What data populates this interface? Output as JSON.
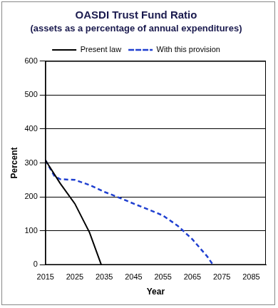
{
  "chart_data": {
    "type": "line",
    "title": "OASDI Trust Fund Ratio",
    "subtitle": "(assets as a percentage of annual expenditures)",
    "x_label": "Year",
    "y_label": "Percent",
    "series": [
      {
        "name": "Present law",
        "color": "#000000",
        "line_style": "solid",
        "x": [
          2015,
          2020,
          2025,
          2030,
          2034
        ],
        "values": [
          308,
          240,
          180,
          95,
          0
        ]
      },
      {
        "name": "With this provision",
        "color": "#1f3fd0",
        "line_style": "dashed",
        "x": [
          2015,
          2018,
          2020,
          2025,
          2030,
          2035,
          2040,
          2045,
          2050,
          2055,
          2060,
          2065,
          2070,
          2072
        ],
        "values": [
          308,
          262,
          252,
          250,
          235,
          215,
          198,
          180,
          163,
          145,
          115,
          75,
          25,
          0
        ]
      }
    ],
    "xlim": [
      2015,
      2090
    ],
    "xticks": [
      2015,
      2025,
      2035,
      2045,
      2055,
      2065,
      2075,
      2085
    ],
    "ylim": [
      0,
      600
    ],
    "yticks": [
      0,
      100,
      200,
      300,
      400,
      500,
      600
    ],
    "grid": "y",
    "legend": "top"
  }
}
